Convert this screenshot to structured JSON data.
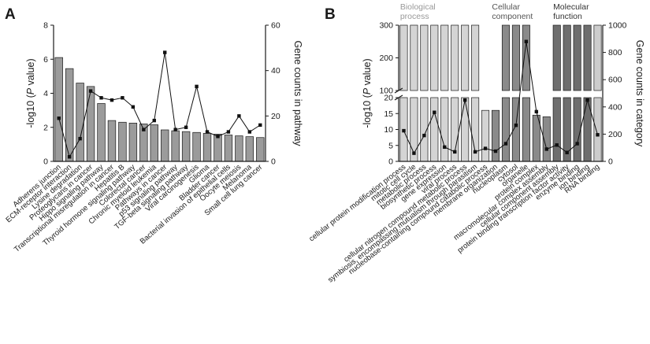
{
  "panels": {
    "a": {
      "letter": "A"
    },
    "b": {
      "letter": "B"
    }
  },
  "chart_data": [
    {
      "type": "bar",
      "panel": "A",
      "title": "",
      "xlabel": "",
      "ylabel": "-log10 (P value)",
      "ylabel_italic_part": "P",
      "y2label": "Gene counts in pathway",
      "ylim": [
        0,
        8
      ],
      "yticks": [
        0,
        2,
        4,
        6,
        8
      ],
      "y2lim": [
        0,
        60
      ],
      "y2ticks": [
        0,
        20,
        40,
        60
      ],
      "grid": false,
      "legend": "none",
      "colors": {
        "bars": "#9b9b9b",
        "line": "#111111"
      },
      "categories": [
        "Adherens junction",
        "ECM-receptor interaction",
        "Lysine degradation",
        "Proteoglycans in cancer",
        "Hippo signaling pathway",
        "Transcriptional misregulation in cancer",
        "Hepatitis B",
        "Thyroid hormone signaling pathway",
        "Colorectal cancer",
        "Chronic myeloid leukemia",
        "Pathways in cancer",
        "p53 signaling pathway",
        "TGF-beta signaling pathway",
        "Viral carcinogenesis",
        "Glioma",
        "Bladder cancer",
        "Bacterial invasion of epithelial cells",
        "Oocyte meiosis",
        "Melanoma",
        "Small cell lung cancer"
      ],
      "series": [
        {
          "kind": "bar",
          "axis": "left",
          "values": [
            6.1,
            5.45,
            4.6,
            4.4,
            3.4,
            2.4,
            2.3,
            2.25,
            2.2,
            2.15,
            1.85,
            1.8,
            1.75,
            1.7,
            1.65,
            1.6,
            1.55,
            1.5,
            1.45,
            1.4
          ]
        },
        {
          "kind": "line",
          "axis": "right",
          "values": [
            19,
            2,
            10,
            31,
            28,
            27,
            28,
            24,
            14,
            18,
            48,
            14,
            15,
            33,
            13,
            11,
            13,
            20,
            13,
            16
          ]
        }
      ]
    },
    {
      "type": "bar",
      "panel": "B",
      "title": "",
      "xlabel": "",
      "ylabel": "-log10 (P value)",
      "ylabel_italic_part": "P",
      "y2label": "Gene counts in category",
      "y_axis_break": {
        "lower": [
          0,
          20
        ],
        "upper": [
          100,
          300
        ]
      },
      "yticks_lower": [
        0,
        5,
        10,
        15,
        20
      ],
      "yticks_upper": [
        100,
        200,
        300
      ],
      "y2lim": [
        0,
        1000
      ],
      "y2ticks": [
        0,
        200,
        400,
        600,
        800,
        1000
      ],
      "grid": false,
      "legend": "none",
      "groups": [
        {
          "label_lines": [
            "Biological",
            "process"
          ],
          "first": 0,
          "last": 8,
          "color": "#d4d4d4",
          "label_color": "#999999"
        },
        {
          "label_lines": [
            "Cellular",
            "component"
          ],
          "first": 9,
          "last": 14,
          "color": "#8a8a8a",
          "label_color": "#555555"
        },
        {
          "label_lines": [
            "Molecular",
            "function"
          ],
          "first": 15,
          "last": 18,
          "color": "#6e6e6e",
          "label_color": "#333333"
        }
      ],
      "categories": [
        "cellular protein modification process",
        "mitotic cell cycle",
        "metabolic process",
        "biosynthetic process",
        "gene expression",
        "viral process",
        "cellular nitrogen compound metabolic process",
        "symbiosis, encompassing mutualism through parasitism",
        "nucleobase-containing compound catabolic process",
        "membrane organization",
        "nucleoplasm",
        "cytosol",
        "organelle",
        "protein complex",
        "macromolecular complex assembly",
        "cellular component assembly",
        "protein binding transcription factor activity",
        "enzyme binding",
        "ion binding",
        "RNA binding"
      ],
      "series": [
        {
          "kind": "bar",
          "axis": "left",
          "values": [
            300,
            300,
            300,
            300,
            300,
            300,
            300,
            300,
            16,
            16,
            300,
            300,
            300,
            14.5,
            14,
            300,
            300,
            300,
            300,
            300
          ]
        },
        {
          "kind": "line",
          "axis": "right",
          "values": [
            225,
            60,
            190,
            360,
            105,
            70,
            450,
            70,
            95,
            75,
            130,
            265,
            880,
            365,
            90,
            120,
            65,
            130,
            450,
            195
          ]
        }
      ]
    }
  ]
}
